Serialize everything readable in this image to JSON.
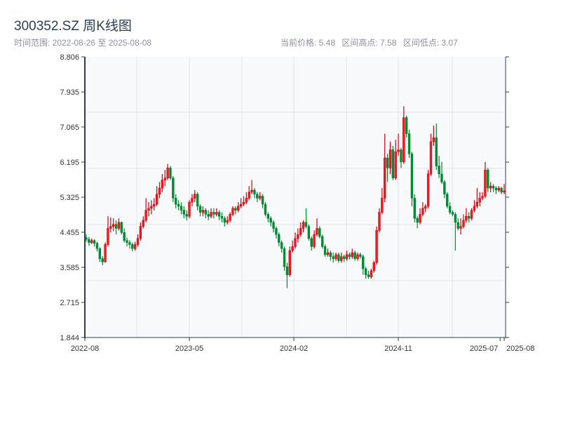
{
  "header": {
    "title": "300352.SZ 周K线图",
    "range_label": "时间范围: 2022-08-26 至 2025-08-08",
    "current_price": "当前价格: 5.48",
    "period_high": "区间高点: 7.58",
    "period_low": "区间低点: 3.07"
  },
  "colors": {
    "up": "#d0000f",
    "down": "#008a33",
    "plot_bg": "#f7f9fb",
    "axis": "#2c3e50",
    "grid": "#e1e5eb"
  },
  "chart_data": {
    "type": "candlestick",
    "title": "300352.SZ 周K线图",
    "ylim": [
      1.844,
      8.806
    ],
    "y_ticks": [
      "1.844",
      "2.715",
      "3.585",
      "4.455",
      "5.325",
      "6.195",
      "7.065",
      "7.935",
      "8.806"
    ],
    "x_ticks": [
      {
        "label": "2022-08",
        "index": 0
      },
      {
        "label": "2023-05",
        "index": 38
      },
      {
        "label": "2024-02",
        "index": 76.5
      },
      {
        "label": "2024-11",
        "index": 115
      },
      {
        "label": "2025-07",
        "index": 152.5
      },
      {
        "label": "2025-08",
        "index": 154
      }
    ],
    "ohlc_format": [
      "open",
      "high",
      "low",
      "close"
    ],
    "ohlc": [
      [
        4.32,
        4.4,
        4.22,
        4.28
      ],
      [
        4.28,
        4.34,
        4.12,
        4.2
      ],
      [
        4.2,
        4.3,
        4.16,
        4.25
      ],
      [
        4.25,
        4.28,
        4.1,
        4.18
      ],
      [
        4.18,
        4.22,
        3.98,
        4.05
      ],
      [
        4.05,
        4.08,
        3.72,
        3.8
      ],
      [
        3.8,
        3.86,
        3.64,
        3.72
      ],
      [
        3.72,
        4.2,
        3.7,
        4.15
      ],
      [
        4.15,
        4.85,
        4.1,
        4.55
      ],
      [
        4.55,
        4.82,
        4.45,
        4.6
      ],
      [
        4.6,
        4.8,
        4.48,
        4.65
      ],
      [
        4.65,
        4.75,
        4.4,
        4.55
      ],
      [
        4.55,
        4.8,
        4.5,
        4.7
      ],
      [
        4.7,
        4.72,
        4.4,
        4.45
      ],
      [
        4.45,
        4.55,
        4.2,
        4.25
      ],
      [
        4.25,
        4.32,
        4.1,
        4.2
      ],
      [
        4.2,
        4.26,
        4.05,
        4.15
      ],
      [
        4.15,
        4.2,
        3.98,
        4.05
      ],
      [
        4.05,
        4.22,
        4.0,
        4.15
      ],
      [
        4.15,
        4.4,
        4.1,
        4.3
      ],
      [
        4.3,
        4.7,
        4.25,
        4.6
      ],
      [
        4.6,
        4.85,
        4.55,
        4.75
      ],
      [
        4.75,
        5.3,
        4.7,
        5.0
      ],
      [
        5.0,
        5.2,
        4.85,
        5.05
      ],
      [
        5.05,
        5.25,
        4.9,
        5.1
      ],
      [
        5.1,
        5.3,
        5.0,
        5.15
      ],
      [
        5.15,
        5.6,
        5.1,
        5.4
      ],
      [
        5.4,
        5.7,
        5.3,
        5.55
      ],
      [
        5.55,
        5.9,
        5.45,
        5.75
      ],
      [
        5.75,
        6.0,
        5.6,
        5.8
      ],
      [
        5.8,
        6.15,
        5.75,
        6.05
      ],
      [
        6.05,
        6.1,
        5.75,
        5.8
      ],
      [
        5.8,
        5.85,
        5.2,
        5.3
      ],
      [
        5.3,
        5.4,
        5.05,
        5.15
      ],
      [
        5.15,
        5.25,
        5.0,
        5.1
      ],
      [
        5.1,
        5.2,
        4.9,
        5.0
      ],
      [
        5.0,
        5.1,
        4.8,
        4.9
      ],
      [
        4.9,
        5.0,
        4.75,
        4.85
      ],
      [
        4.85,
        5.25,
        4.8,
        5.2
      ],
      [
        5.2,
        5.4,
        5.1,
        5.3
      ],
      [
        5.3,
        5.5,
        5.2,
        5.4
      ],
      [
        5.4,
        5.45,
        5.0,
        5.1
      ],
      [
        5.1,
        5.15,
        4.85,
        4.95
      ],
      [
        4.95,
        5.1,
        4.85,
        5.0
      ],
      [
        5.0,
        5.05,
        4.8,
        4.9
      ],
      [
        4.9,
        5.0,
        4.75,
        4.85
      ],
      [
        4.85,
        5.05,
        4.8,
        4.95
      ],
      [
        4.95,
        5.05,
        4.8,
        4.9
      ],
      [
        4.9,
        5.05,
        4.85,
        4.95
      ],
      [
        4.95,
        5.0,
        4.75,
        4.85
      ],
      [
        4.85,
        4.95,
        4.7,
        4.8
      ],
      [
        4.8,
        4.85,
        4.6,
        4.7
      ],
      [
        4.7,
        4.85,
        4.65,
        4.75
      ],
      [
        4.75,
        4.95,
        4.7,
        4.9
      ],
      [
        4.9,
        5.1,
        4.85,
        5.05
      ],
      [
        5.05,
        5.1,
        4.9,
        5.0
      ],
      [
        5.0,
        5.2,
        4.95,
        5.1
      ],
      [
        5.1,
        5.3,
        5.05,
        5.15
      ],
      [
        5.15,
        5.35,
        5.1,
        5.2
      ],
      [
        5.2,
        5.45,
        5.15,
        5.3
      ],
      [
        5.3,
        5.6,
        5.25,
        5.45
      ],
      [
        5.45,
        5.75,
        5.4,
        5.5
      ],
      [
        5.5,
        5.55,
        5.3,
        5.4
      ],
      [
        5.4,
        5.45,
        5.2,
        5.3
      ],
      [
        5.3,
        5.45,
        5.25,
        5.35
      ],
      [
        5.35,
        5.4,
        5.05,
        5.15
      ],
      [
        5.15,
        5.2,
        4.85,
        4.9
      ],
      [
        4.9,
        4.95,
        4.7,
        4.8
      ],
      [
        4.8,
        4.85,
        4.6,
        4.7
      ],
      [
        4.7,
        4.75,
        4.45,
        4.55
      ],
      [
        4.55,
        4.6,
        4.3,
        4.4
      ],
      [
        4.4,
        4.45,
        4.1,
        4.2
      ],
      [
        4.2,
        4.25,
        3.95,
        4.05
      ],
      [
        4.05,
        4.1,
        3.5,
        3.6
      ],
      [
        3.6,
        3.7,
        3.07,
        3.4
      ],
      [
        3.4,
        4.1,
        3.35,
        4.0
      ],
      [
        4.0,
        4.25,
        3.95,
        4.1
      ],
      [
        4.1,
        4.45,
        4.05,
        4.3
      ],
      [
        4.3,
        4.55,
        4.2,
        4.4
      ],
      [
        4.4,
        4.7,
        4.35,
        4.55
      ],
      [
        4.55,
        4.75,
        4.45,
        4.7
      ],
      [
        4.7,
        5.05,
        4.55,
        4.6
      ],
      [
        4.6,
        4.65,
        4.25,
        4.3
      ],
      [
        4.3,
        4.35,
        4.0,
        4.1
      ],
      [
        4.1,
        4.5,
        4.05,
        4.4
      ],
      [
        4.4,
        4.8,
        4.35,
        4.55
      ],
      [
        4.55,
        4.6,
        4.3,
        4.35
      ],
      [
        4.35,
        4.4,
        4.05,
        4.1
      ],
      [
        4.1,
        4.15,
        3.85,
        3.9
      ],
      [
        3.9,
        4.05,
        3.85,
        3.95
      ],
      [
        3.95,
        4.0,
        3.75,
        3.85
      ],
      [
        3.85,
        3.95,
        3.7,
        3.8
      ],
      [
        3.8,
        3.95,
        3.75,
        3.9
      ],
      [
        3.9,
        3.95,
        3.7,
        3.75
      ],
      [
        3.75,
        3.95,
        3.7,
        3.85
      ],
      [
        3.85,
        3.9,
        3.72,
        3.8
      ],
      [
        3.8,
        4.0,
        3.75,
        3.9
      ],
      [
        3.9,
        3.95,
        3.78,
        3.85
      ],
      [
        3.85,
        4.05,
        3.8,
        3.95
      ],
      [
        3.95,
        4.0,
        3.75,
        3.8
      ],
      [
        3.8,
        3.95,
        3.75,
        3.9
      ],
      [
        3.9,
        3.95,
        3.8,
        3.85
      ],
      [
        3.85,
        3.9,
        3.4,
        3.55
      ],
      [
        3.55,
        3.6,
        3.3,
        3.4
      ],
      [
        3.4,
        3.5,
        3.3,
        3.35
      ],
      [
        3.35,
        3.55,
        3.3,
        3.5
      ],
      [
        3.5,
        3.75,
        3.45,
        3.7
      ],
      [
        3.7,
        4.6,
        3.65,
        4.5
      ],
      [
        4.5,
        5.05,
        4.45,
        4.95
      ],
      [
        4.95,
        5.55,
        4.9,
        5.3
      ],
      [
        5.3,
        6.9,
        5.2,
        6.3
      ],
      [
        6.3,
        6.4,
        5.7,
        6.05
      ],
      [
        6.05,
        6.7,
        5.9,
        6.5
      ],
      [
        6.5,
        6.6,
        5.75,
        5.8
      ],
      [
        5.8,
        6.75,
        5.75,
        6.45
      ],
      [
        6.45,
        6.9,
        6.35,
        6.5
      ],
      [
        6.5,
        6.55,
        6.05,
        6.2
      ],
      [
        6.2,
        7.58,
        6.15,
        7.3
      ],
      [
        7.3,
        7.35,
        6.8,
        6.9
      ],
      [
        6.9,
        7.0,
        6.3,
        6.4
      ],
      [
        6.4,
        6.45,
        5.1,
        5.3
      ],
      [
        5.3,
        5.4,
        4.7,
        4.8
      ],
      [
        4.8,
        4.85,
        4.55,
        4.7
      ],
      [
        4.7,
        5.05,
        4.65,
        4.9
      ],
      [
        4.9,
        5.2,
        4.85,
        5.05
      ],
      [
        5.05,
        5.15,
        4.95,
        5.1
      ],
      [
        5.1,
        6.0,
        5.05,
        5.9
      ],
      [
        5.9,
        6.9,
        5.85,
        6.7
      ],
      [
        6.7,
        7.1,
        6.6,
        6.8
      ],
      [
        6.8,
        7.15,
        6.0,
        6.1
      ],
      [
        6.1,
        6.35,
        5.8,
        5.9
      ],
      [
        5.9,
        6.2,
        5.65,
        5.7
      ],
      [
        5.7,
        5.75,
        5.3,
        5.4
      ],
      [
        5.4,
        5.45,
        5.05,
        5.1
      ],
      [
        5.1,
        5.2,
        4.9,
        4.95
      ],
      [
        4.95,
        5.0,
        4.85,
        4.9
      ],
      [
        4.9,
        4.95,
        4.0,
        4.7
      ],
      [
        4.7,
        4.8,
        4.5,
        4.55
      ],
      [
        4.55,
        4.8,
        4.4,
        4.6
      ],
      [
        4.6,
        4.9,
        4.55,
        4.75
      ],
      [
        4.75,
        5.05,
        4.7,
        4.85
      ],
      [
        4.85,
        4.95,
        4.7,
        4.8
      ],
      [
        4.8,
        5.05,
        4.75,
        5.0
      ],
      [
        5.0,
        5.25,
        4.95,
        5.1
      ],
      [
        5.1,
        5.55,
        5.05,
        5.2
      ],
      [
        5.2,
        5.45,
        5.1,
        5.3
      ],
      [
        5.3,
        5.45,
        5.25,
        5.35
      ],
      [
        5.35,
        6.2,
        5.3,
        6.0
      ],
      [
        6.0,
        6.05,
        5.45,
        5.55
      ],
      [
        5.55,
        5.7,
        5.45,
        5.6
      ],
      [
        5.6,
        5.65,
        5.45,
        5.55
      ],
      [
        5.55,
        5.6,
        5.4,
        5.5
      ],
      [
        5.5,
        5.6,
        5.45,
        5.55
      ],
      [
        5.55,
        5.58,
        5.4,
        5.45
      ],
      [
        5.45,
        5.65,
        5.4,
        5.48
      ]
    ]
  }
}
